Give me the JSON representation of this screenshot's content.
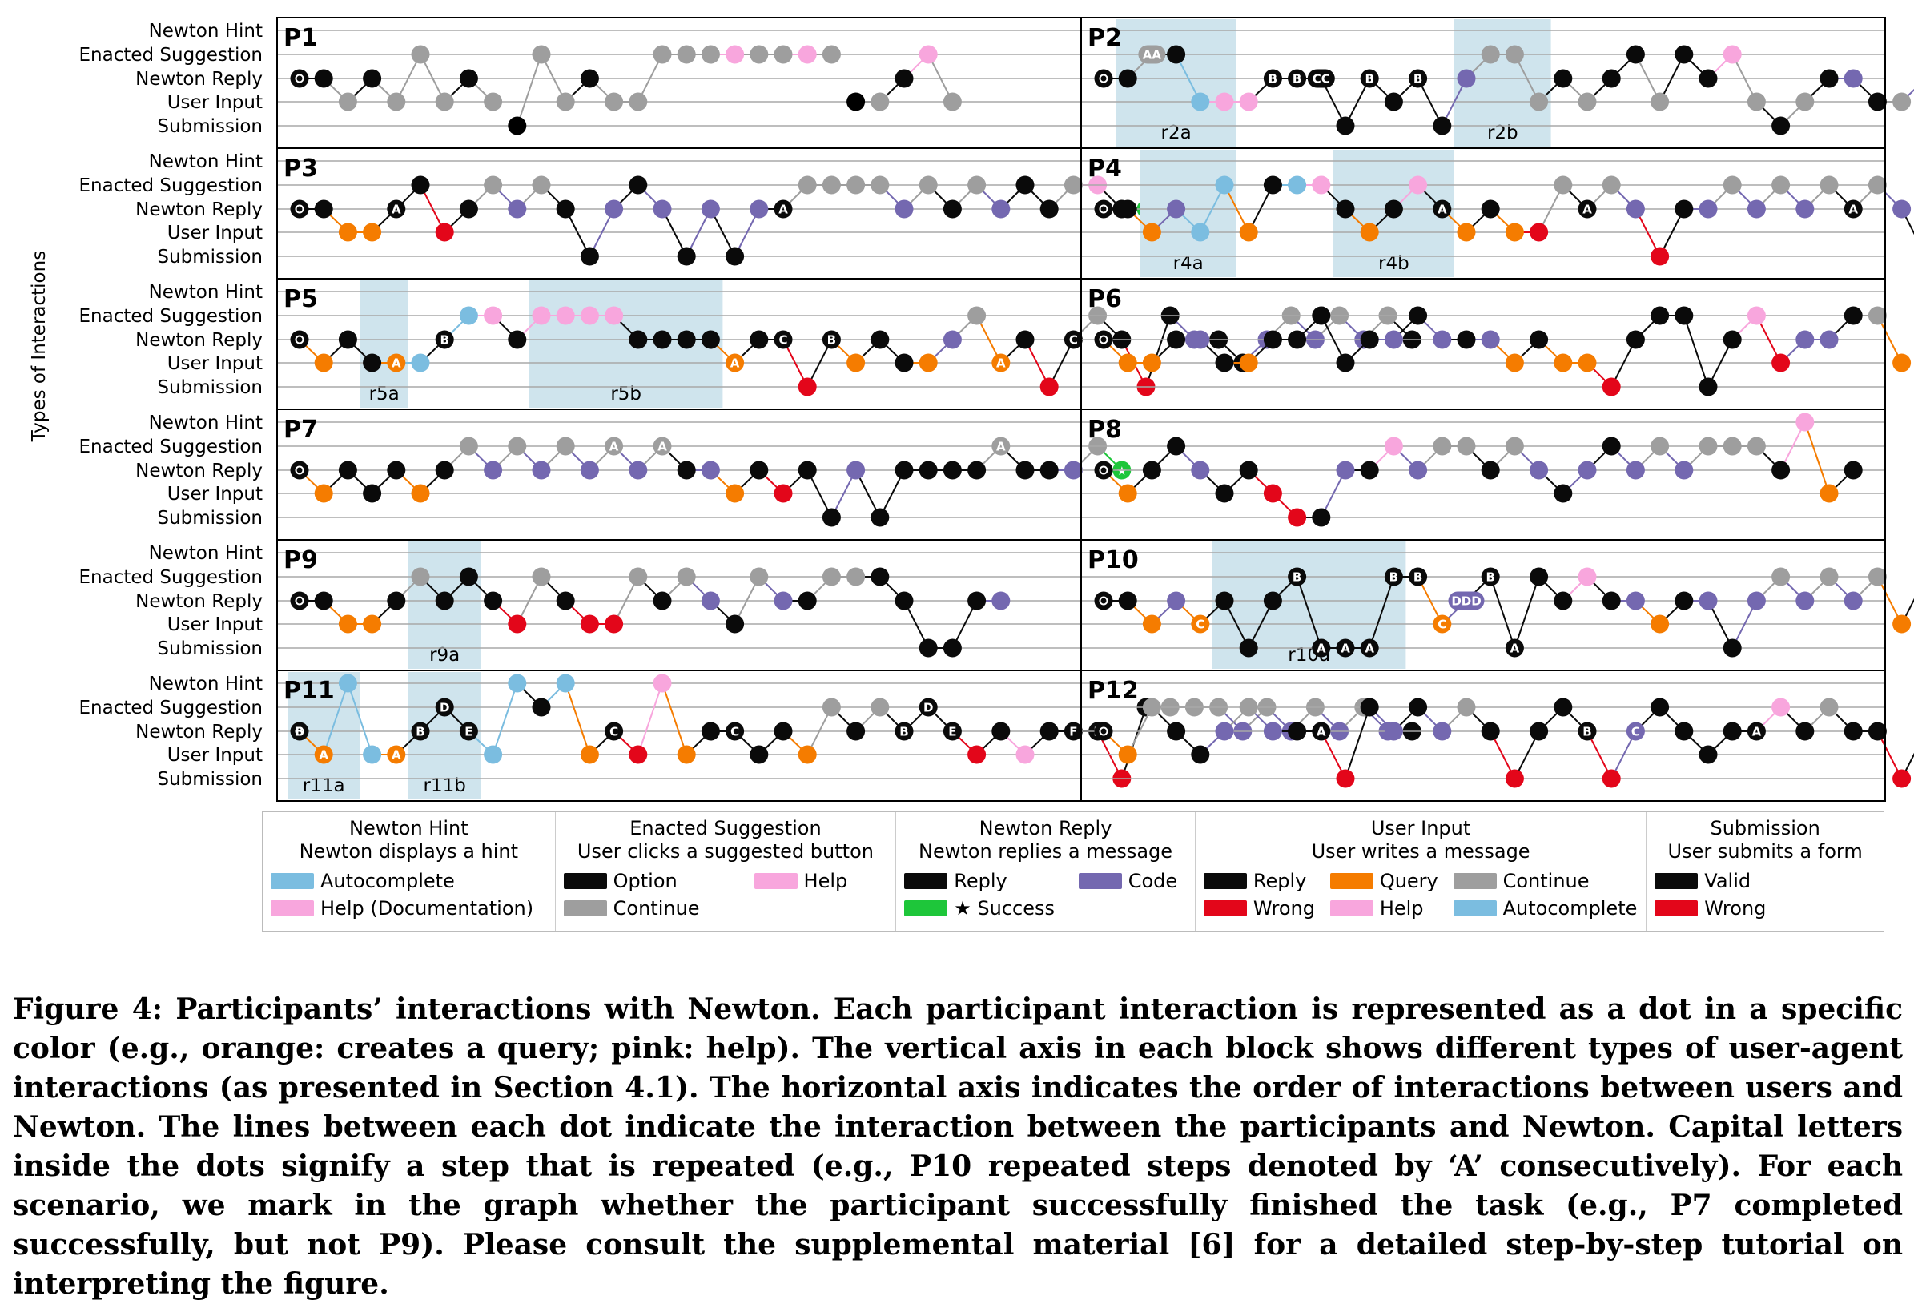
{
  "chart_data": {
    "type": "scatter",
    "ylabel": "Types of Interactions",
    "rows": [
      "Newton Hint",
      "Enacted Suggestion",
      "Newton Reply",
      "User Input",
      "Submission"
    ],
    "colors": {
      "autocomplete": "#7bbde0",
      "help": "#f8a6dd",
      "option": "#0a0a0a",
      "continue": "#9e9e9e",
      "reply": "#0a0a0a",
      "code": "#7468b0",
      "success": "#1ec63a",
      "query": "#f57c00",
      "wrong": "#e3061a",
      "valid": "#0a0a0a",
      "region": "#cfe4ed"
    },
    "panels": [
      {
        "name": "P1",
        "regions": [],
        "seq": "3o 3k 2c 3k 2c 1g 2c 3k 2c 4v 1g 2c 3k 2c 2c 1g 1g 1g 1h 1g 1g 1h 1g 2s 2c 3k 1h 2c"
      },
      {
        "name": "P2",
        "regions": [
          {
            "label": "r2a",
            "from": 1,
            "to": 5
          },
          {
            "label": "r2b",
            "from": 15,
            "to": 18
          }
        ],
        "seq": "3o 3k 1g:AA 1k 2a 2h 2h 3k:B 3k:B 3k:CC 4k 3k:B 2k 3k:B 4k 3c 1g 1g 2c 3k 2c 3k 1k 2c 1k 3k 1h 2c 4k 2c 3k 3c 2k 2c 3c 2q 1g:D 2q 1g:D 3c 1g 1g 1g 2c 1g 1h 3k 3s 1k 2c"
      },
      {
        "name": "P3",
        "regions": [],
        "seq": "3o 3k 2q 2q 3k:A 1k 2w 3k 1g 3c 1g 3k 4k 3c 1k 3c 4k 3c 4k 3c 3k:A 1g 1g 1g 1g 3c 1g 3k 1g 3c 1k 3k 1g 1h 3k 3s 3c 2c"
      },
      {
        "name": "P4",
        "regions": [
          {
            "label": "r4a",
            "from": 2,
            "to": 5
          },
          {
            "label": "r4b",
            "from": 10,
            "to": 14
          }
        ],
        "seq": "3o 3k 2q 3c 2a 1a 2q 1k 1a 1h 3k 2q 3k 1h 3k:A 2q 3k 2q 2w 1g 3k:A 1g 3c 4w 3k 3c 1g 3c 1g 3c 1g 3k:A 1g 3c 4k 1g 1h 3c 2q:B 3k 2q:B 3c 3k 1g 3c 1g 1g 3k 4k 3c 3s 2c 2c"
      },
      {
        "name": "P5",
        "regions": [
          {
            "label": "r5a",
            "from": 3,
            "to": 4
          },
          {
            "label": "r5b",
            "from": 10,
            "to": 17
          }
        ],
        "seq": "3o 2q 3k 2k 2q:A 2a 3k:B 1a 1h 3k 1h 1h 1h 1h 3k 3k 3k 3k 2q:A 3k 3k:C 5w 3k:B 2q 3k 2k 2q 3c 1g 2q:A 3k 5w 3k:C 1g 3k 5w 1k 3c 3k 2k 3c 1g 3c 1g 3c 1g 3k"
      },
      {
        "name": "P6",
        "regions": [],
        "seq": "3o 2q 2q 3k 3c 2k 2q 3k 3k 1k 2k 3k 3c 1k 3c 3k 3c 2q 3k 2q 2q 5w 3k 1k 1k 5k 3k 1h 2w 3c 3c 1k 1g 2q"
      },
      {
        "name": "P7",
        "regions": [],
        "seq": "3o 2q 3k 2k 3k 2q 3k 1g 3c 1g 3c 1g 3c 1g:A 3c 1g:A 3k 3c 2q 3k 2w 3k 5k 3c 5k 3k 3k 3k 3k 1g:A 3k 3k 3c 1g 3s"
      },
      {
        "name": "P8",
        "regions": [],
        "seq": "3o 2q 3k 1k 3c 2k 3k 2w 5w 5k 3c 3k 1h 3c 1g 1g 3k 1g 3c 2k 3c 1k 3c 1g 3c 1g 1g 1g 3k 0h 2q 3k"
      },
      {
        "name": "P9",
        "regions": [
          {
            "label": "r9a",
            "from": 5,
            "to": 7
          }
        ],
        "seq": "3o 3k 2q 2q 3k 1g 3k 1k 3k 2w 1g 3k 2w 2w 1g 3k 1g 3c 2k 1g 3c 3k 1g 1g 1k 3k 4k 4k 3k 3c"
      },
      {
        "name": "P10",
        "regions": [
          {
            "label": "r10a",
            "from": 5,
            "to": 12
          }
        ],
        "seq": "3o 3k 2q 3c 2q:C 3k 4k 3k 1k:B 4k:A 4k:A 4k:A 1k:B 1k:B 2q:C 3c:DDD 1k:B 4k:A 1k 3k 1h 3k 3c 2q 3k 3c 4k 3c 1g 3c 1g 3c 1g 2q 1k 3k 1g 1k 3k 3s 1k 3c"
      },
      {
        "name": "P11",
        "regions": [
          {
            "label": "r11a",
            "from": 0,
            "to": 2
          },
          {
            "label": "r11b",
            "from": 5,
            "to": 7
          }
        ],
        "seq": "3o:B 2q:A 0a 2a 2q:A 3k:B 1k:D 3k:E 2a 0a 1k 0a 2q 3k:C 2w 0h 2q 3k 3k:C 2k 3k 2q 1g 3k 1g 3k:B 1k:D 3k:E 2w 3k 2h 3k 3k:F 3k:F 5w 1k 1g 1g 1g 3c 1g 3c 1g 3c 1g 3c 3k"
      },
      {
        "name": "P12",
        "regions": [],
        "seq": "3o 2q 1g 3k 2k 3c 1g 3c 3k 3k:A 5w 1k 3c 1k 3c 1g 3k 5w 3k 1k 3k:B 5w 3c:C 1k 3k 2k 3k 3k:A 1h 3k 1g 3k 3k 5w 3k:B 1h 3k 5w 3c:C"
      }
    ]
  },
  "legend": [
    {
      "title": "Newton Hint",
      "subtitle": "Newton displays a hint",
      "items": [
        {
          "label": "Autocomplete",
          "color": "#7bbde0"
        },
        {
          "label": "Help (Documentation)",
          "color": "#f8a6dd"
        }
      ]
    },
    {
      "title": "Enacted Suggestion",
      "subtitle": "User clicks a suggested button",
      "items": [
        {
          "label": "Option",
          "color": "#0a0a0a"
        },
        {
          "label": "Help",
          "color": "#f8a6dd"
        },
        {
          "label": "Continue",
          "color": "#9e9e9e"
        }
      ]
    },
    {
      "title": "Newton Reply",
      "subtitle": "Newton replies a message",
      "items": [
        {
          "label": "Reply",
          "color": "#0a0a0a"
        },
        {
          "label": "Code",
          "color": "#7468b0"
        },
        {
          "label": "★ Success",
          "color": "#1ec63a"
        }
      ]
    },
    {
      "title": "User Input",
      "subtitle": "User writes a message",
      "items": [
        {
          "label": "Reply",
          "color": "#0a0a0a"
        },
        {
          "label": "Query",
          "color": "#f57c00"
        },
        {
          "label": "Continue",
          "color": "#9e9e9e"
        },
        {
          "label": "Wrong",
          "color": "#e3061a"
        },
        {
          "label": "Help",
          "color": "#f8a6dd"
        },
        {
          "label": "Autocomplete",
          "color": "#7bbde0"
        }
      ]
    },
    {
      "title": "Submission",
      "subtitle": "User submits a form",
      "items": [
        {
          "label": "Valid",
          "color": "#0a0a0a"
        },
        {
          "label": "Wrong",
          "color": "#e3061a"
        }
      ]
    }
  ],
  "caption": {
    "label": "Figure 4:",
    "text": "Participants’ interactions with Newton. Each participant interaction is represented as a dot in a specific color (e.g., orange: creates a query; pink: help). The vertical axis in each block shows different types of user-agent interactions (as presented in Section 4.1). The horizontal axis indicates the order of interactions between users and Newton. The lines between each dot indicate the interaction between the participants and Newton. Capital letters inside the dots signify a step that is repeated (e.g., P10 repeated steps denoted by ‘A’ consecutively). For each scenario, we mark in the graph whether the participant successfully finished the task (e.g., P7 completed successfully, but not P9). Please consult the supplemental material [6] for a detailed step-by-step tutorial on interpreting the figure."
  }
}
